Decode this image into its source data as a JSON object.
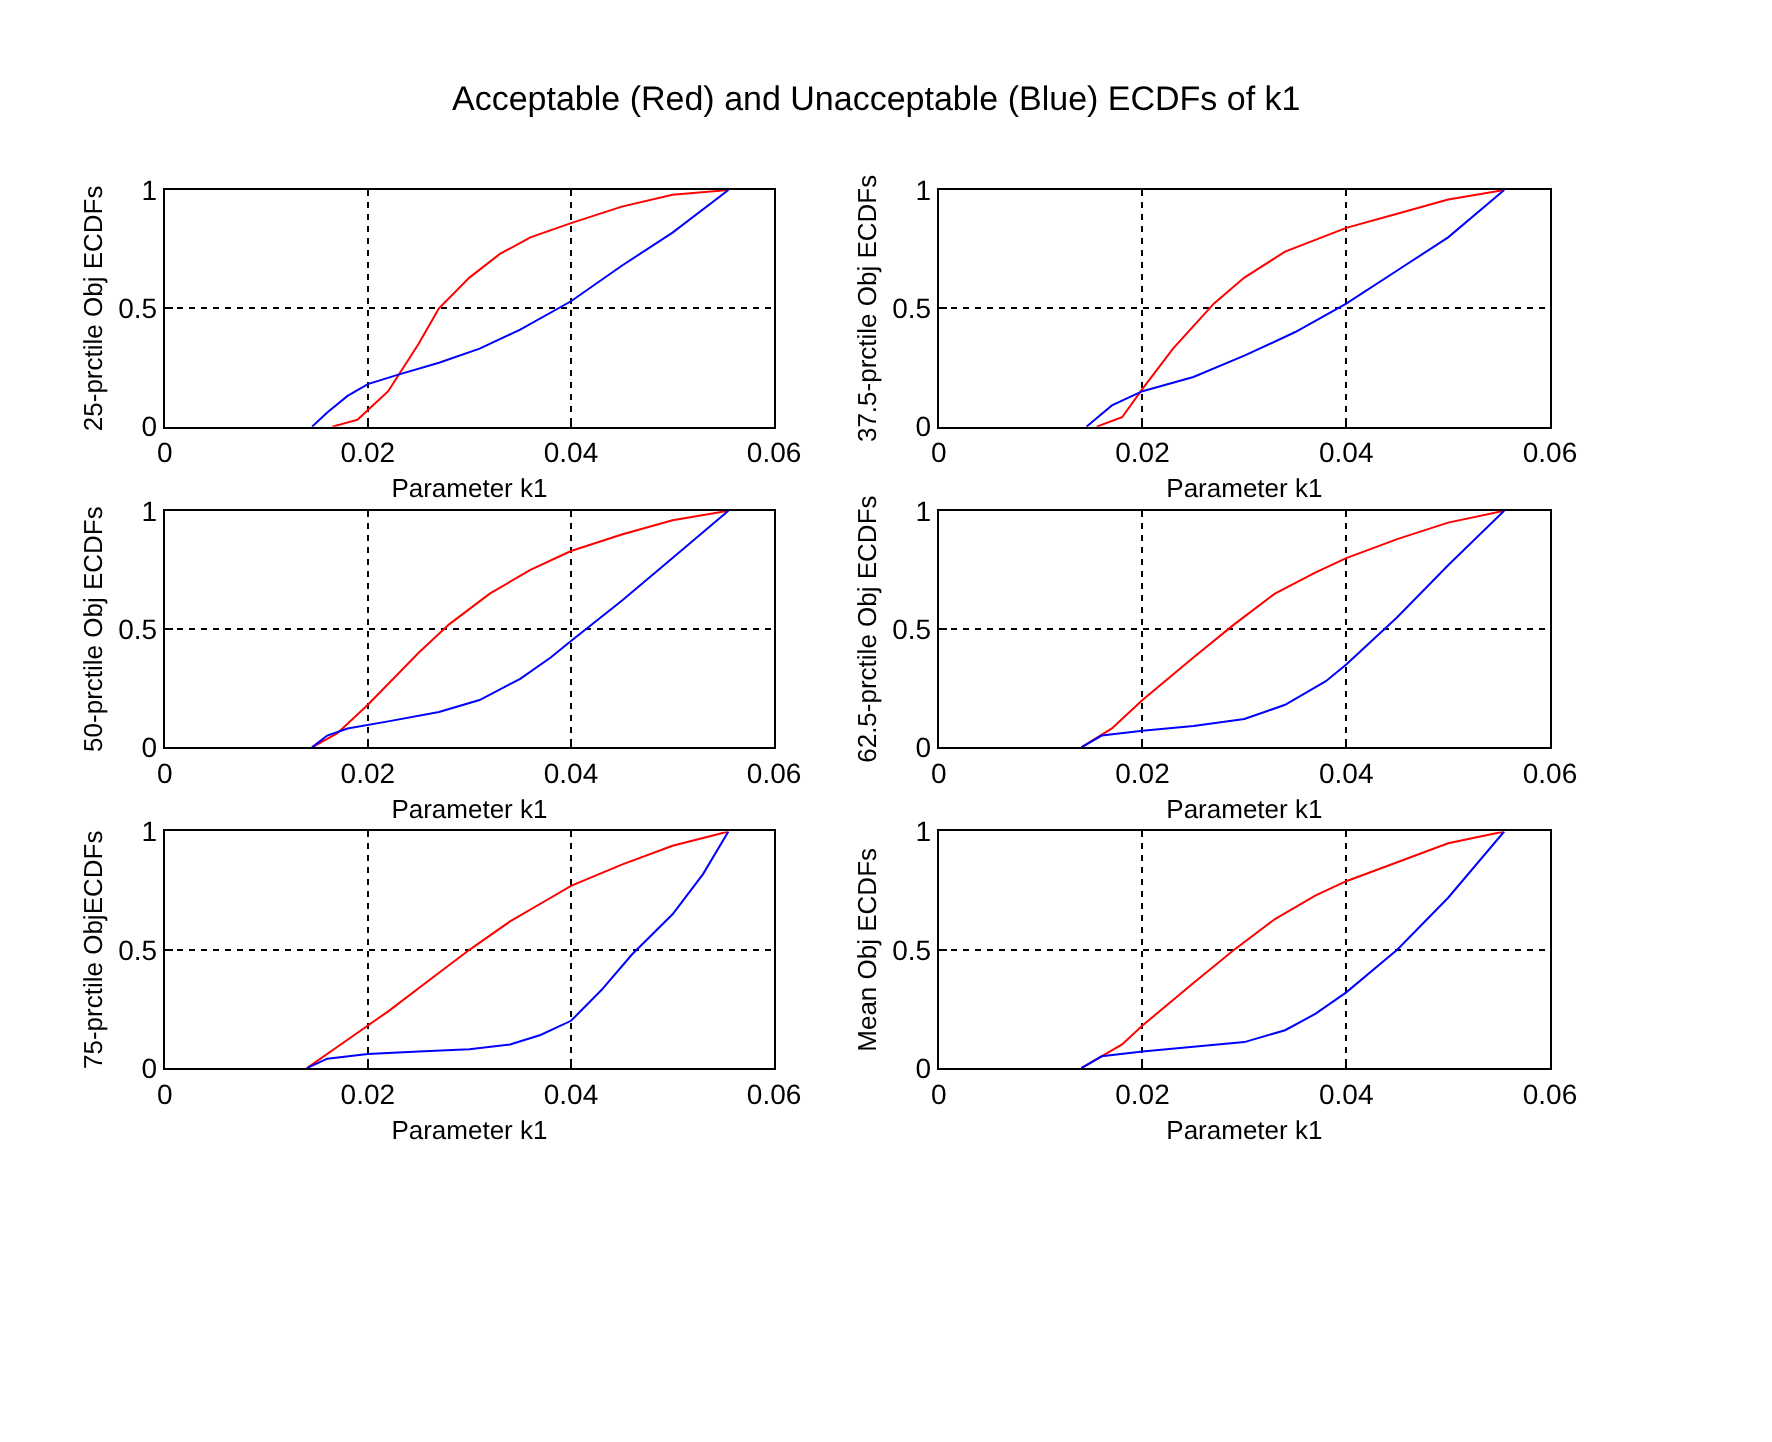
{
  "chart_data": [
    {
      "type": "line",
      "title": "Acceptable (Red) and Unacceptable (Blue) ECDFs of k1",
      "xlabel": "Parameter k1",
      "ylabel": "25-prctile Obj ECDFs",
      "xlim": [
        0,
        0.06
      ],
      "xticks": [
        0,
        0.02,
        0.04,
        0.06
      ],
      "ylim": [
        0,
        1
      ],
      "yticks": [
        0,
        0.5,
        1
      ],
      "grid": true,
      "line_style": "solid",
      "series": [
        {
          "color": "#ff0000",
          "x": [
            0.0165,
            0.019,
            0.022,
            0.025,
            0.027,
            0.03,
            0.033,
            0.036,
            0.04,
            0.045,
            0.05,
            0.0555
          ],
          "values": [
            0,
            0.03,
            0.15,
            0.35,
            0.5,
            0.63,
            0.73,
            0.8,
            0.86,
            0.93,
            0.98,
            1
          ]
        },
        {
          "color": "#0000ff",
          "x": [
            0.0145,
            0.016,
            0.018,
            0.02,
            0.023,
            0.027,
            0.031,
            0.035,
            0.04,
            0.045,
            0.05,
            0.0555
          ],
          "values": [
            0,
            0.06,
            0.13,
            0.18,
            0.22,
            0.27,
            0.33,
            0.41,
            0.53,
            0.68,
            0.82,
            1
          ]
        }
      ]
    },
    {
      "type": "line",
      "xlabel": "Parameter k1",
      "ylabel": "37.5-prctile Obj ECDFs",
      "xlim": [
        0,
        0.06
      ],
      "xticks": [
        0,
        0.02,
        0.04,
        0.06
      ],
      "ylim": [
        0,
        1
      ],
      "yticks": [
        0,
        0.5,
        1
      ],
      "grid": true,
      "line_style": "solid",
      "series": [
        {
          "color": "#ff0000",
          "x": [
            0.0155,
            0.018,
            0.02,
            0.023,
            0.027,
            0.03,
            0.034,
            0.04,
            0.045,
            0.05,
            0.0555
          ],
          "values": [
            0,
            0.04,
            0.16,
            0.33,
            0.52,
            0.63,
            0.74,
            0.84,
            0.9,
            0.96,
            1
          ]
        },
        {
          "color": "#0000ff",
          "x": [
            0.0145,
            0.017,
            0.02,
            0.025,
            0.03,
            0.035,
            0.04,
            0.045,
            0.05,
            0.0555
          ],
          "values": [
            0,
            0.09,
            0.15,
            0.21,
            0.3,
            0.4,
            0.52,
            0.66,
            0.8,
            1
          ]
        }
      ]
    },
    {
      "type": "line",
      "xlabel": "Parameter k1",
      "ylabel": "50-prctile Obj ECDFs",
      "xlim": [
        0,
        0.06
      ],
      "xticks": [
        0,
        0.02,
        0.04,
        0.06
      ],
      "ylim": [
        0,
        1
      ],
      "yticks": [
        0,
        0.5,
        1
      ],
      "grid": true,
      "line_style": "solid",
      "series": [
        {
          "color": "#ff0000",
          "x": [
            0.0145,
            0.017,
            0.02,
            0.025,
            0.028,
            0.032,
            0.036,
            0.04,
            0.045,
            0.05,
            0.0555
          ],
          "values": [
            0,
            0.06,
            0.18,
            0.4,
            0.52,
            0.65,
            0.75,
            0.83,
            0.9,
            0.96,
            1
          ]
        },
        {
          "color": "#0000ff",
          "x": [
            0.0145,
            0.016,
            0.018,
            0.022,
            0.027,
            0.031,
            0.035,
            0.038,
            0.04,
            0.045,
            0.05,
            0.0555
          ],
          "values": [
            0,
            0.05,
            0.08,
            0.11,
            0.15,
            0.2,
            0.29,
            0.38,
            0.45,
            0.62,
            0.8,
            1
          ]
        }
      ]
    },
    {
      "type": "line",
      "xlabel": "Parameter k1",
      "ylabel": "62.5-prctile Obj ECDFs",
      "xlim": [
        0,
        0.06
      ],
      "xticks": [
        0,
        0.02,
        0.04,
        0.06
      ],
      "ylim": [
        0,
        1
      ],
      "yticks": [
        0,
        0.5,
        1
      ],
      "grid": true,
      "line_style": "solid",
      "series": [
        {
          "color": "#ff0000",
          "x": [
            0.014,
            0.017,
            0.02,
            0.025,
            0.029,
            0.033,
            0.037,
            0.04,
            0.045,
            0.05,
            0.0555
          ],
          "values": [
            0,
            0.08,
            0.2,
            0.38,
            0.52,
            0.65,
            0.74,
            0.8,
            0.88,
            0.95,
            1
          ]
        },
        {
          "color": "#0000ff",
          "x": [
            0.014,
            0.016,
            0.02,
            0.025,
            0.03,
            0.034,
            0.038,
            0.04,
            0.045,
            0.05,
            0.0555
          ],
          "values": [
            0,
            0.05,
            0.07,
            0.09,
            0.12,
            0.18,
            0.28,
            0.35,
            0.55,
            0.77,
            1
          ]
        }
      ]
    },
    {
      "type": "line",
      "xlabel": "Parameter k1",
      "ylabel": "75-prctile ObjECDFs",
      "xlim": [
        0,
        0.06
      ],
      "xticks": [
        0,
        0.02,
        0.04,
        0.06
      ],
      "ylim": [
        0,
        1
      ],
      "yticks": [
        0,
        0.5,
        1
      ],
      "grid": true,
      "line_style": "solid",
      "series": [
        {
          "color": "#ff0000",
          "x": [
            0.014,
            0.018,
            0.022,
            0.026,
            0.03,
            0.034,
            0.038,
            0.04,
            0.045,
            0.05,
            0.0555
          ],
          "values": [
            0,
            0.12,
            0.24,
            0.37,
            0.5,
            0.62,
            0.72,
            0.77,
            0.86,
            0.94,
            1
          ]
        },
        {
          "color": "#0000ff",
          "x": [
            0.014,
            0.016,
            0.02,
            0.025,
            0.03,
            0.034,
            0.037,
            0.04,
            0.043,
            0.046,
            0.05,
            0.053,
            0.0555
          ],
          "values": [
            0,
            0.04,
            0.06,
            0.07,
            0.08,
            0.1,
            0.14,
            0.2,
            0.33,
            0.48,
            0.65,
            0.82,
            1
          ]
        }
      ]
    },
    {
      "type": "line",
      "xlabel": "Parameter k1",
      "ylabel": "Mean Obj ECDFs",
      "xlim": [
        0,
        0.06
      ],
      "xticks": [
        0,
        0.02,
        0.04,
        0.06
      ],
      "ylim": [
        0,
        1
      ],
      "yticks": [
        0,
        0.5,
        1
      ],
      "grid": true,
      "line_style": "solid",
      "series": [
        {
          "color": "#ff0000",
          "x": [
            0.014,
            0.018,
            0.02,
            0.025,
            0.029,
            0.033,
            0.037,
            0.04,
            0.045,
            0.05,
            0.0555
          ],
          "values": [
            0,
            0.1,
            0.18,
            0.36,
            0.5,
            0.63,
            0.73,
            0.79,
            0.87,
            0.95,
            1
          ]
        },
        {
          "color": "#0000ff",
          "x": [
            0.014,
            0.016,
            0.02,
            0.025,
            0.03,
            0.034,
            0.037,
            0.04,
            0.045,
            0.05,
            0.0555
          ],
          "values": [
            0,
            0.05,
            0.07,
            0.09,
            0.11,
            0.16,
            0.23,
            0.32,
            0.5,
            0.72,
            1
          ]
        }
      ]
    }
  ]
}
